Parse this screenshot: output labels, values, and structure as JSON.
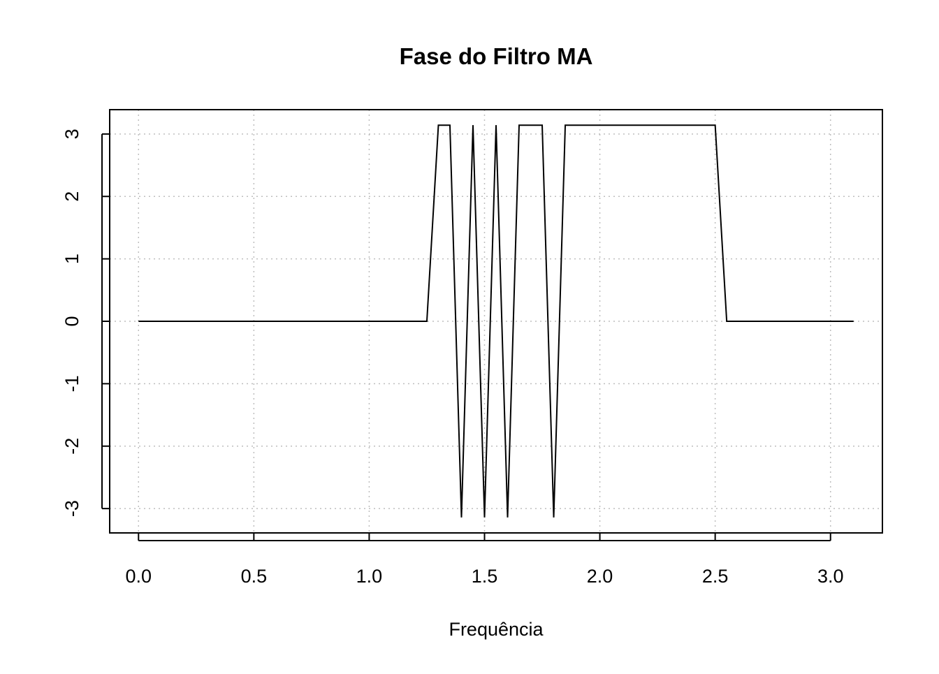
{
  "chart_data": {
    "type": "line",
    "title": "Fase do Filtro MA",
    "xlabel": "Frequência",
    "ylabel": "",
    "xlim": [
      -0.125,
      3.225
    ],
    "ylim": [
      -3.39,
      3.39
    ],
    "x_ticks": [
      0.0,
      0.5,
      1.0,
      1.5,
      2.0,
      2.5,
      3.0
    ],
    "x_tick_labels": [
      "0.0",
      "0.5",
      "1.0",
      "1.5",
      "2.0",
      "2.5",
      "3.0"
    ],
    "y_ticks": [
      -3,
      -2,
      -1,
      0,
      1,
      2,
      3
    ],
    "y_tick_labels": [
      "-3",
      "-2",
      "-1",
      "0",
      "1",
      "2",
      "3"
    ],
    "grid": true,
    "grid_style": "dotted",
    "line_color": "#000000",
    "grid_color": "#bebebe",
    "series": [
      {
        "x": [
          0.0,
          0.05,
          0.1,
          0.15,
          0.2,
          0.25,
          0.3,
          0.35,
          0.4,
          0.45,
          0.5,
          0.55,
          0.6,
          0.65,
          0.7,
          0.75,
          0.8,
          0.85,
          0.9,
          0.95,
          1.0,
          1.05,
          1.1,
          1.15,
          1.2,
          1.25,
          1.3,
          1.35,
          1.4,
          1.45,
          1.5,
          1.55,
          1.6,
          1.65,
          1.7,
          1.75,
          1.8,
          1.85,
          1.9,
          1.95,
          2.0,
          2.05,
          2.1,
          2.15,
          2.2,
          2.25,
          2.3,
          2.35,
          2.4,
          2.45,
          2.5,
          2.55,
          2.6,
          2.65,
          2.7,
          2.75,
          2.8,
          2.85,
          2.9,
          2.95,
          3.0,
          3.05,
          3.1
        ],
        "y": [
          0,
          0,
          0,
          0,
          0,
          0,
          0,
          0,
          0,
          0,
          0,
          0,
          0,
          0,
          0,
          0,
          0,
          0,
          0,
          0,
          0,
          0,
          0,
          0,
          0,
          0,
          3.14159,
          3.14159,
          -3.14159,
          3.14159,
          -3.14159,
          3.14159,
          -3.14159,
          3.14159,
          3.14159,
          3.14159,
          -3.14159,
          3.14159,
          3.14159,
          3.14159,
          3.14159,
          3.14159,
          3.14159,
          3.14159,
          3.14159,
          3.14159,
          3.14159,
          3.14159,
          3.14159,
          3.14159,
          3.14159,
          0,
          0,
          0,
          0,
          0,
          0,
          0,
          0,
          0,
          0,
          0,
          0
        ]
      }
    ]
  }
}
